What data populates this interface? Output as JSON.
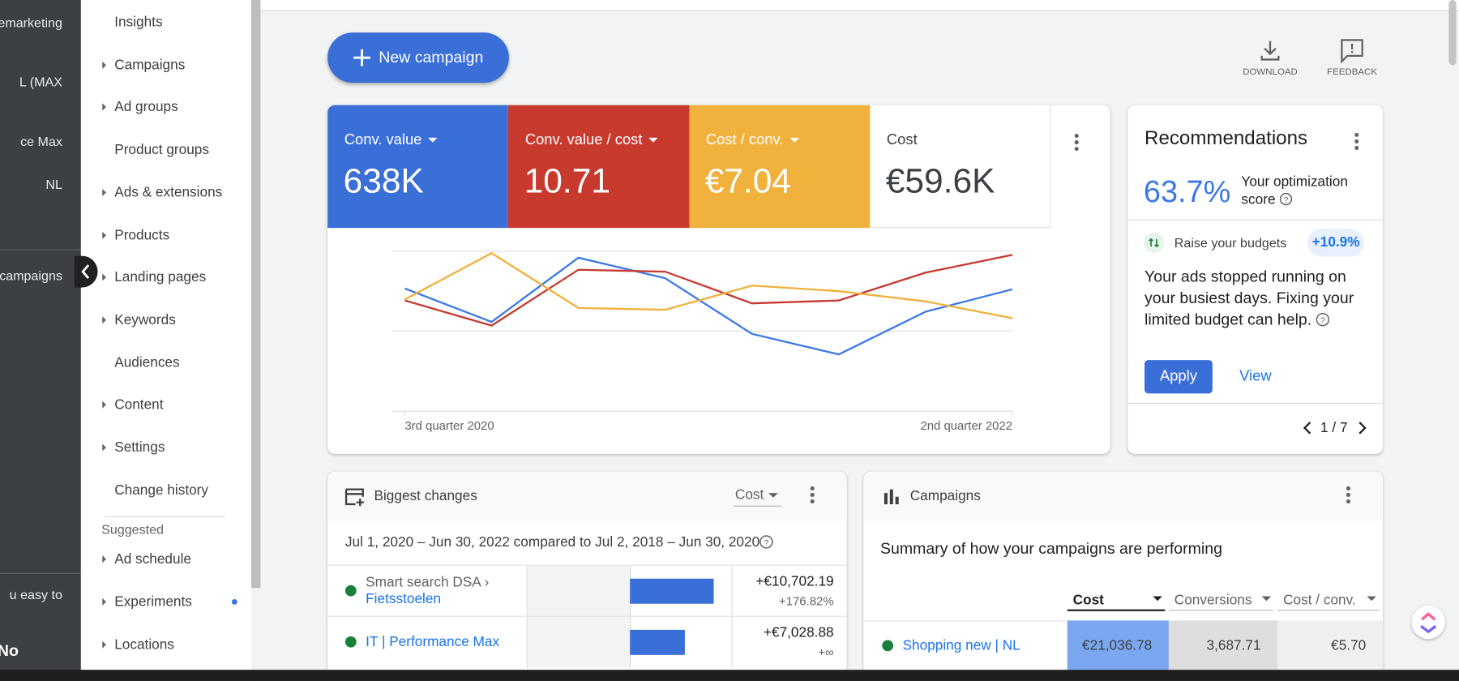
{
  "sidebar": {
    "items": [
      "emarketing",
      "L (MAX",
      "ce Max",
      "NL",
      "campaigns",
      "u easy to",
      "No"
    ]
  },
  "nav": {
    "items": [
      {
        "label": "Insights",
        "has_submenu": false
      },
      {
        "label": "Campaigns",
        "has_submenu": true
      },
      {
        "label": "Ad groups",
        "has_submenu": true
      },
      {
        "label": "Product groups",
        "has_submenu": false
      },
      {
        "label": "Ads & extensions",
        "has_submenu": true
      },
      {
        "label": "Products",
        "has_submenu": true
      },
      {
        "label": "Landing pages",
        "has_submenu": true
      },
      {
        "label": "Keywords",
        "has_submenu": true
      },
      {
        "label": "Audiences",
        "has_submenu": false
      },
      {
        "label": "Content",
        "has_submenu": true
      },
      {
        "label": "Settings",
        "has_submenu": true
      },
      {
        "label": "Change history",
        "has_submenu": false
      }
    ],
    "suggested_title": "Suggested",
    "suggested_items": [
      {
        "label": "Ad schedule",
        "has_submenu": true,
        "new": false
      },
      {
        "label": "Experiments",
        "has_submenu": true,
        "new": true
      },
      {
        "label": "Locations",
        "has_submenu": true,
        "new": false
      }
    ]
  },
  "toolbar": {
    "new_campaign": "New campaign",
    "download": "DOWNLOAD",
    "feedback": "FEEDBACK"
  },
  "scorecards": [
    {
      "label": "Conv. value",
      "value": "638K",
      "color": "#3b6fd8",
      "dropdown": true
    },
    {
      "label": "Conv. value / cost",
      "value": "10.71",
      "color": "#c93a2e",
      "dropdown": true
    },
    {
      "label": "Cost / conv.",
      "value": "€7.04",
      "color": "#f0b23c",
      "dropdown": true
    },
    {
      "label": "Cost",
      "value": "€59.6K",
      "color": "#ffffff",
      "dropdown": false
    }
  ],
  "chart_data": {
    "type": "line",
    "categories": [
      "3rd quarter 2020",
      null,
      null,
      null,
      null,
      null,
      null,
      "2nd quarter 2022"
    ],
    "series": [
      {
        "color": "#3b78e7",
        "values": [
          76.7,
          55.8,
          95.9,
          83.1,
          48.3,
          35.5,
          62.2,
          76.2
        ]
      },
      {
        "color": "#c5392f",
        "values": [
          69.2,
          53.5,
          88.4,
          87.2,
          67.4,
          69.2,
          86.6,
          97.7
        ]
      },
      {
        "color": "#f0b03a",
        "values": [
          69.8,
          98.8,
          64.5,
          63.4,
          78.5,
          75.0,
          68.6,
          58.1
        ]
      }
    ],
    "ylim": [
      0,
      100
    ],
    "grid": true
  },
  "recommendations": {
    "title": "Recommendations",
    "score": "63.7%",
    "score_label": "Your optimization score",
    "item": "Raise your budgets",
    "uplift": "+10.9%",
    "body": "Your ads stopped running on your busiest days. Fixing your limited budget can help.",
    "apply": "Apply",
    "view": "View",
    "pager": "1 / 7"
  },
  "biggest_changes": {
    "title": "Biggest changes",
    "metric": "Cost",
    "range": "Jul 1, 2020 – Jun 30, 2022 compared to Jul 2, 2018 – Jun 30, 2020",
    "rows": [
      {
        "prefix": "Smart search DSA ›",
        "name": "Fietsstoelen",
        "change": 10702.19,
        "change_label": "+€10,702.19",
        "percent": "+176.82%"
      },
      {
        "prefix": null,
        "name": "IT | Performance Max",
        "change": 7028.88,
        "change_label": "+€7,028.88",
        "percent": "+∞"
      }
    ]
  },
  "campaigns": {
    "title": "Campaigns",
    "subtitle": "Summary of how your campaigns are performing",
    "columns": [
      "Cost",
      "Conversions",
      "Cost / conv."
    ],
    "rows": [
      [
        "Shopping new | NL",
        "€21,036.78",
        "3,687.71",
        "€5.70"
      ]
    ]
  }
}
